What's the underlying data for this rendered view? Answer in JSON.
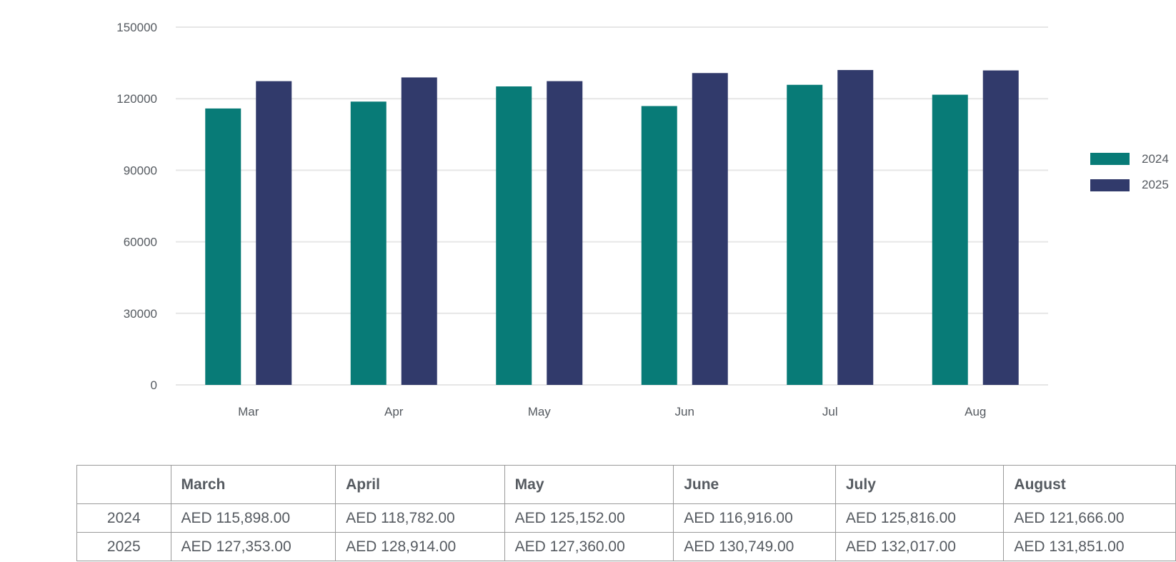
{
  "colors": {
    "2024": "#087b77",
    "2025": "#313a6b",
    "grid": "#e6e6e6",
    "text": "#555a60"
  },
  "chart_data": {
    "type": "bar",
    "categories": [
      "Mar",
      "Apr",
      "May",
      "Jun",
      "Jul",
      "Aug"
    ],
    "series": [
      {
        "name": "2024",
        "values": [
          115898,
          118782,
          125152,
          116916,
          125816,
          121666
        ]
      },
      {
        "name": "2025",
        "values": [
          127353,
          128914,
          127360,
          130749,
          132017,
          131851
        ]
      }
    ],
    "yticks": [
      0,
      30000,
      60000,
      90000,
      120000,
      150000
    ],
    "ylim": [
      0,
      150000
    ],
    "grid": true,
    "legend_position": "right"
  },
  "table": {
    "headers": [
      "",
      "March",
      "April",
      "May",
      "June",
      "July",
      "August"
    ],
    "rows": [
      {
        "label": "2024",
        "values": [
          "AED 115,898.00",
          "AED 118,782.00",
          "AED 125,152.00",
          "AED 116,916.00",
          "AED 125,816.00",
          "AED 121,666.00"
        ]
      },
      {
        "label": "2025",
        "values": [
          "AED 127,353.00",
          "AED 128,914.00",
          "AED 127,360.00",
          "AED 130,749.00",
          "AED 132,017.00",
          "AED 131,851.00"
        ]
      }
    ]
  }
}
